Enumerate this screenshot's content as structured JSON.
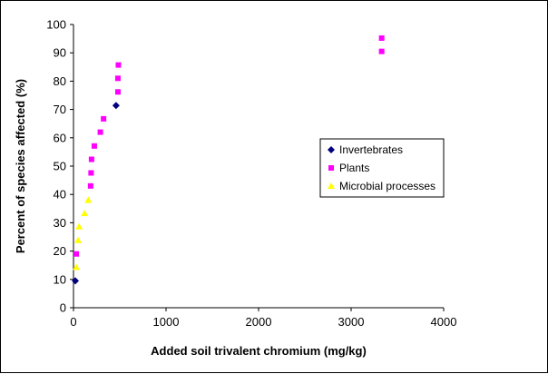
{
  "chart_data": {
    "type": "scatter",
    "xlabel": "Added soil trivalent chromium (mg/kg)",
    "ylabel": "Percent of species affected (%)",
    "xlim": [
      0,
      4000
    ],
    "ylim": [
      0,
      100
    ],
    "x_ticks": [
      0,
      1000,
      2000,
      3000,
      4000
    ],
    "y_ticks": [
      0,
      10,
      20,
      30,
      40,
      50,
      60,
      70,
      80,
      90,
      100
    ],
    "grid": false,
    "legend_position": "right",
    "series": [
      {
        "name": "Invertebrates",
        "marker": "diamond",
        "color": "#000080",
        "points": [
          [
            20,
            9.5
          ],
          [
            460,
            71.4
          ]
        ]
      },
      {
        "name": "Plants",
        "marker": "square",
        "color": "#ff00ff",
        "points": [
          [
            30,
            19
          ],
          [
            185,
            43
          ],
          [
            190,
            47.6
          ],
          [
            195,
            52.4
          ],
          [
            225,
            57.1
          ],
          [
            290,
            62
          ],
          [
            325,
            66.7
          ],
          [
            480,
            76.2
          ],
          [
            480,
            81
          ],
          [
            485,
            85.7
          ],
          [
            3330,
            90.5
          ],
          [
            3330,
            95.2
          ]
        ]
      },
      {
        "name": "Microbial processes",
        "marker": "triangle",
        "color": "#ffff00",
        "points": [
          [
            30,
            14.3
          ],
          [
            50,
            23.8
          ],
          [
            60,
            28.6
          ],
          [
            120,
            33.3
          ],
          [
            160,
            38
          ]
        ]
      }
    ]
  }
}
